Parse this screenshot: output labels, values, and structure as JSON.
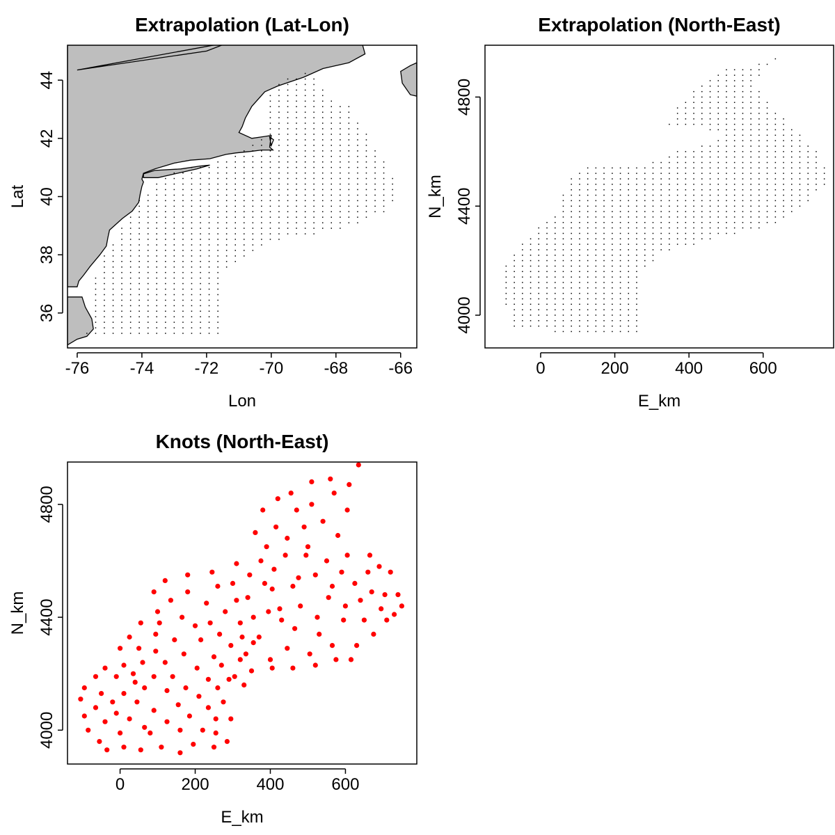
{
  "chart_data": [
    {
      "type": "scatter",
      "title": "Extrapolation (Lat-Lon)",
      "xlabel": "Lon",
      "ylabel": "Lat",
      "xlim": [
        -76.3,
        -65.5
      ],
      "ylim": [
        34.8,
        45.2
      ],
      "xticks": [
        -76,
        -74,
        -72,
        -70,
        -68,
        -66
      ],
      "yticks": [
        36,
        38,
        40,
        42,
        44
      ],
      "xtick_labels": [
        "-76",
        "-74",
        "-72",
        "-70",
        "-68",
        "-66"
      ],
      "ytick_labels": [
        "36",
        "38",
        "40",
        "42",
        "44"
      ],
      "land_color": "#bebebe",
      "point_color": "#000000",
      "marker": "dot",
      "grid": false,
      "region_outline": [
        [
          -75.7,
          35.3
        ],
        [
          -71.4,
          35.3
        ],
        [
          -71.4,
          37.4
        ],
        [
          -69.9,
          38.5
        ],
        [
          -68.0,
          38.8
        ],
        [
          -66.4,
          39.5
        ],
        [
          -66.0,
          40.3
        ],
        [
          -67.2,
          42.4
        ],
        [
          -67.5,
          43.1
        ],
        [
          -68.2,
          43.4
        ],
        [
          -68.8,
          44.3
        ],
        [
          -69.6,
          44.1
        ],
        [
          -70.3,
          43.2
        ],
        [
          -70.2,
          42.1
        ],
        [
          -70.6,
          41.8
        ],
        [
          -71.3,
          41.3
        ],
        [
          -72.7,
          41.0
        ],
        [
          -73.6,
          40.5
        ],
        [
          -74.2,
          39.7
        ],
        [
          -74.8,
          38.6
        ],
        [
          -75.3,
          37.8
        ],
        [
          -75.6,
          36.5
        ],
        [
          -75.7,
          35.3
        ]
      ],
      "grid_step": [
        0.27,
        0.19
      ]
    },
    {
      "type": "scatter",
      "title": "Extrapolation (North-East)",
      "xlabel": "E_km",
      "ylabel": "N_km",
      "xlim": [
        -150,
        790
      ],
      "ylim": [
        3880,
        4990
      ],
      "xticks": [
        0,
        200,
        400,
        600
      ],
      "yticks": [
        4000,
        4400,
        4800
      ],
      "xtick_labels": [
        "0",
        "200",
        "400",
        "600"
      ],
      "ytick_labels": [
        "4000",
        "4400",
        "4800"
      ],
      "point_color": "#000000",
      "marker": "dot",
      "grid": false,
      "region_outline": [
        [
          -115,
          4150
        ],
        [
          -75,
          4230
        ],
        [
          40,
          4380
        ],
        [
          85,
          4510
        ],
        [
          120,
          4550
        ],
        [
          300,
          4560
        ],
        [
          360,
          4600
        ],
        [
          500,
          4650
        ],
        [
          440,
          4690
        ],
        [
          340,
          4690
        ],
        [
          360,
          4760
        ],
        [
          490,
          4910
        ],
        [
          560,
          4900
        ],
        [
          660,
          4970
        ],
        [
          570,
          4850
        ],
        [
          660,
          4720
        ],
        [
          750,
          4600
        ],
        [
          780,
          4500
        ],
        [
          730,
          4420
        ],
        [
          650,
          4340
        ],
        [
          530,
          4300
        ],
        [
          330,
          4230
        ],
        [
          270,
          4160
        ],
        [
          270,
          3920
        ],
        [
          -80,
          3950
        ],
        [
          -115,
          4150
        ]
      ],
      "grid_step": [
        22,
        20
      ]
    },
    {
      "type": "scatter",
      "title": "Knots (North-East)",
      "xlabel": "E_km",
      "ylabel": "N_km",
      "xlim": [
        -140,
        790
      ],
      "ylim": [
        3880,
        4950
      ],
      "xticks": [
        0,
        200,
        400,
        600
      ],
      "yticks": [
        4000,
        4400,
        4800
      ],
      "xtick_labels": [
        "0",
        "200",
        "400",
        "600"
      ],
      "ytick_labels": [
        "4000",
        "4400",
        "4800"
      ],
      "point_color": "#ff0000",
      "marker": "filled-circle",
      "grid": false,
      "points": [
        [
          -105,
          4110
        ],
        [
          -95,
          4150
        ],
        [
          -95,
          4050
        ],
        [
          -85,
          4000
        ],
        [
          -65,
          4190
        ],
        [
          -65,
          4080
        ],
        [
          -55,
          3960
        ],
        [
          -50,
          4130
        ],
        [
          -40,
          4220
        ],
        [
          -40,
          4030
        ],
        [
          -35,
          3930
        ],
        [
          -20,
          4100
        ],
        [
          -10,
          4190
        ],
        [
          -10,
          4060
        ],
        [
          0,
          3990
        ],
        [
          0,
          4290
        ],
        [
          10,
          4230
        ],
        [
          10,
          4130
        ],
        [
          10,
          3940
        ],
        [
          25,
          4040
        ],
        [
          25,
          4330
        ],
        [
          35,
          4200
        ],
        [
          40,
          4170
        ],
        [
          45,
          4100
        ],
        [
          50,
          4290
        ],
        [
          55,
          4380
        ],
        [
          55,
          3930
        ],
        [
          60,
          4240
        ],
        [
          65,
          4010
        ],
        [
          65,
          4150
        ],
        [
          80,
          3990
        ],
        [
          90,
          4070
        ],
        [
          90,
          4190
        ],
        [
          90,
          4490
        ],
        [
          95,
          4340
        ],
        [
          95,
          4280
        ],
        [
          100,
          4420
        ],
        [
          105,
          4380
        ],
        [
          110,
          3940
        ],
        [
          120,
          4530
        ],
        [
          120,
          4240
        ],
        [
          125,
          4140
        ],
        [
          125,
          4030
        ],
        [
          135,
          4460
        ],
        [
          140,
          4190
        ],
        [
          145,
          4320
        ],
        [
          155,
          4090
        ],
        [
          160,
          4000
        ],
        [
          160,
          3920
        ],
        [
          165,
          4400
        ],
        [
          170,
          4270
        ],
        [
          175,
          4150
        ],
        [
          180,
          4550
        ],
        [
          180,
          4490
        ],
        [
          185,
          4050
        ],
        [
          195,
          3950
        ],
        [
          200,
          4370
        ],
        [
          205,
          4220
        ],
        [
          210,
          4120
        ],
        [
          215,
          4320
        ],
        [
          220,
          4000
        ],
        [
          230,
          4450
        ],
        [
          235,
          4180
        ],
        [
          235,
          4080
        ],
        [
          240,
          4380
        ],
        [
          245,
          4560
        ],
        [
          250,
          3940
        ],
        [
          250,
          4260
        ],
        [
          255,
          4040
        ],
        [
          255,
          3990
        ],
        [
          260,
          4150
        ],
        [
          260,
          4510
        ],
        [
          265,
          4340
        ],
        [
          270,
          4230
        ],
        [
          275,
          4100
        ],
        [
          280,
          4420
        ],
        [
          285,
          3960
        ],
        [
          290,
          4180
        ],
        [
          295,
          4300
        ],
        [
          295,
          4040
        ],
        [
          300,
          4520
        ],
        [
          305,
          4190
        ],
        [
          310,
          4460
        ],
        [
          310,
          4590
        ],
        [
          320,
          4380
        ],
        [
          320,
          4250
        ],
        [
          325,
          4330
        ],
        [
          330,
          4160
        ],
        [
          335,
          4270
        ],
        [
          340,
          4470
        ],
        [
          345,
          4550
        ],
        [
          350,
          4210
        ],
        [
          355,
          4310
        ],
        [
          355,
          4400
        ],
        [
          360,
          4700
        ],
        [
          370,
          4330
        ],
        [
          375,
          4600
        ],
        [
          380,
          4780
        ],
        [
          385,
          4520
        ],
        [
          390,
          4650
        ],
        [
          395,
          4420
        ],
        [
          400,
          4250
        ],
        [
          405,
          4220
        ],
        [
          405,
          4500
        ],
        [
          410,
          4570
        ],
        [
          415,
          4720
        ],
        [
          420,
          4820
        ],
        [
          425,
          4430
        ],
        [
          430,
          4390
        ],
        [
          440,
          4620
        ],
        [
          445,
          4680
        ],
        [
          445,
          4290
        ],
        [
          455,
          4840
        ],
        [
          460,
          4510
        ],
        [
          460,
          4220
        ],
        [
          465,
          4360
        ],
        [
          470,
          4780
        ],
        [
          475,
          4540
        ],
        [
          480,
          4440
        ],
        [
          490,
          4720
        ],
        [
          495,
          4620
        ],
        [
          500,
          4650
        ],
        [
          505,
          4270
        ],
        [
          510,
          4880
        ],
        [
          510,
          4800
        ],
        [
          520,
          4550
        ],
        [
          520,
          4230
        ],
        [
          525,
          4400
        ],
        [
          530,
          4340
        ],
        [
          540,
          4740
        ],
        [
          550,
          4600
        ],
        [
          555,
          4470
        ],
        [
          560,
          4890
        ],
        [
          565,
          4510
        ],
        [
          565,
          4300
        ],
        [
          570,
          4840
        ],
        [
          575,
          4250
        ],
        [
          580,
          4690
        ],
        [
          590,
          4560
        ],
        [
          595,
          4390
        ],
        [
          600,
          4440
        ],
        [
          605,
          4620
        ],
        [
          605,
          4780
        ],
        [
          610,
          4870
        ],
        [
          615,
          4250
        ],
        [
          625,
          4520
        ],
        [
          630,
          4300
        ],
        [
          635,
          4940
        ],
        [
          640,
          4460
        ],
        [
          650,
          4390
        ],
        [
          660,
          4560
        ],
        [
          665,
          4620
        ],
        [
          670,
          4490
        ],
        [
          675,
          4340
        ],
        [
          690,
          4580
        ],
        [
          695,
          4430
        ],
        [
          705,
          4480
        ],
        [
          710,
          4390
        ],
        [
          720,
          4560
        ],
        [
          730,
          4410
        ],
        [
          740,
          4480
        ],
        [
          750,
          4440
        ]
      ]
    }
  ]
}
